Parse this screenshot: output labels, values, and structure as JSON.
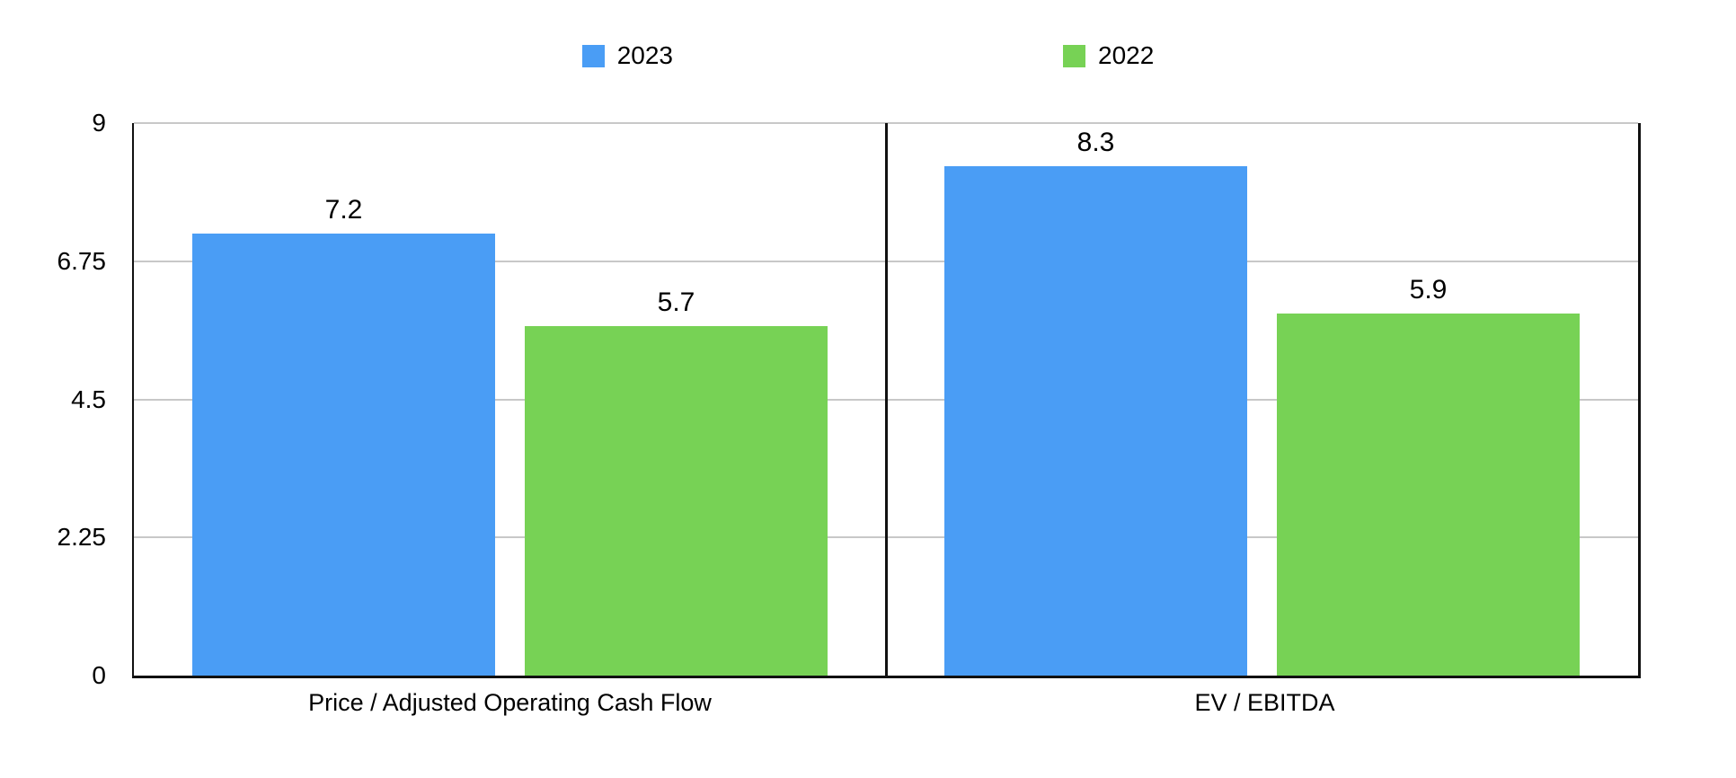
{
  "colors": {
    "series_2023": "#4A9DF5",
    "series_2022": "#77D255",
    "gridline": "#C8C8C8",
    "axis": "#111111",
    "text": "#000000",
    "background": "#FFFFFF"
  },
  "chart_data": {
    "type": "bar",
    "title": "",
    "categories": [
      "Price / Adjusted Operating Cash Flow",
      "EV / EBITDA"
    ],
    "series": [
      {
        "name": "2023",
        "color": "#4A9DF5",
        "values": [
          7.2,
          8.3
        ]
      },
      {
        "name": "2022",
        "color": "#77D255",
        "values": [
          5.7,
          5.9
        ]
      }
    ],
    "value_labels": [
      "7.2",
      "5.7",
      "8.3",
      "5.9"
    ],
    "ylim": [
      0,
      9
    ],
    "yticks": [
      0,
      2.25,
      4.5,
      6.75,
      9
    ],
    "ytick_labels": [
      "0",
      "2.25",
      "4.5",
      "6.75",
      "9"
    ],
    "grid": true,
    "legend_position": "top",
    "legend_labels": [
      "2023",
      "2022"
    ]
  }
}
